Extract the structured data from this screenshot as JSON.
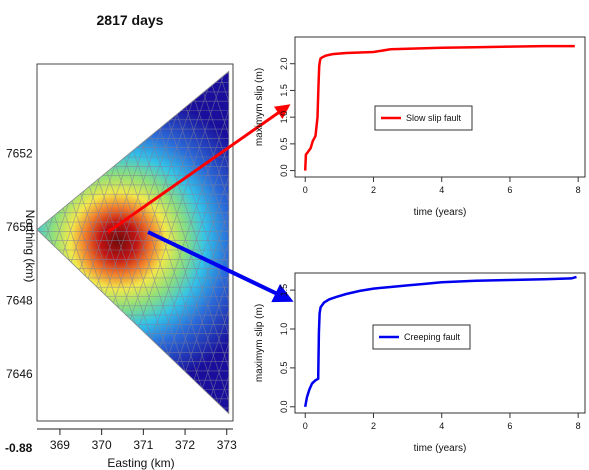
{
  "title": "2817 days",
  "map": {
    "xlabel": "Easting (km)",
    "ylabel": "Northing (km)",
    "x_ticks": [
      369,
      370,
      371,
      372,
      373
    ],
    "y_ticks": [
      7646,
      7648,
      7650,
      7652
    ],
    "corner_label": "-0.88",
    "xlim": [
      368.45,
      373.15
    ],
    "ylim": [
      7644.7,
      7654.4
    ],
    "triangle_vertices": [
      [
        368.45,
        7649.9
      ],
      [
        373.05,
        7654.2
      ],
      [
        373.05,
        7644.9
      ]
    ],
    "slip_peak_center": [
      370.4,
      7649.6
    ],
    "colormap": [
      "#1a0f9c",
      "#2b6bd9",
      "#33c3e8",
      "#8ee07a",
      "#f2e94a",
      "#f07a2a",
      "#c01414",
      "#6e0a0a"
    ]
  },
  "chart_data": [
    {
      "type": "line",
      "title": "",
      "xlabel": "time (years)",
      "ylabel": "maximym slip (m)",
      "xlim": [
        -0.3,
        8.2
      ],
      "ylim": [
        -0.12,
        2.5
      ],
      "x_ticks": [
        0,
        2,
        4,
        6,
        8
      ],
      "y_ticks": [
        "0.0",
        "0.5",
        "1.0",
        "1.5",
        "2.0"
      ],
      "legend": "center",
      "series": [
        {
          "name": "Slow slip fault",
          "color": "#ff0000",
          "x": [
            0,
            0.02,
            0.08,
            0.16,
            0.22,
            0.3,
            0.36,
            0.39,
            0.41,
            0.43,
            0.45,
            0.5,
            0.6,
            0.8,
            1.2,
            2.0,
            2.5,
            3.0,
            4.0,
            5.0,
            6.0,
            7.0,
            7.9
          ],
          "y": [
            0.0,
            0.3,
            0.35,
            0.42,
            0.55,
            0.65,
            1.0,
            1.6,
            1.95,
            2.05,
            2.1,
            2.12,
            2.15,
            2.18,
            2.2,
            2.22,
            2.27,
            2.28,
            2.3,
            2.31,
            2.32,
            2.33,
            2.33
          ]
        }
      ]
    },
    {
      "type": "line",
      "title": "",
      "xlabel": "time (years)",
      "ylabel": "maximym slip (m)",
      "xlim": [
        -0.3,
        8.2
      ],
      "ylim": [
        -0.08,
        1.72
      ],
      "x_ticks": [
        0,
        2,
        4,
        6,
        8
      ],
      "y_ticks": [
        "0.0",
        "0.5",
        "1.0",
        "1.5"
      ],
      "legend": "center",
      "series": [
        {
          "name": "Creeping fault",
          "color": "#0000ee",
          "x": [
            0,
            0.05,
            0.12,
            0.2,
            0.3,
            0.38,
            0.4,
            0.42,
            0.45,
            0.55,
            0.7,
            0.9,
            1.2,
            1.6,
            2.0,
            2.5,
            3.0,
            3.5,
            4.0,
            5.0,
            6.0,
            7.0,
            7.8,
            7.95
          ],
          "y": [
            0.0,
            0.12,
            0.22,
            0.3,
            0.34,
            0.36,
            0.95,
            1.2,
            1.28,
            1.34,
            1.38,
            1.41,
            1.45,
            1.49,
            1.52,
            1.54,
            1.56,
            1.58,
            1.6,
            1.62,
            1.63,
            1.64,
            1.65,
            1.67
          ]
        }
      ]
    }
  ]
}
